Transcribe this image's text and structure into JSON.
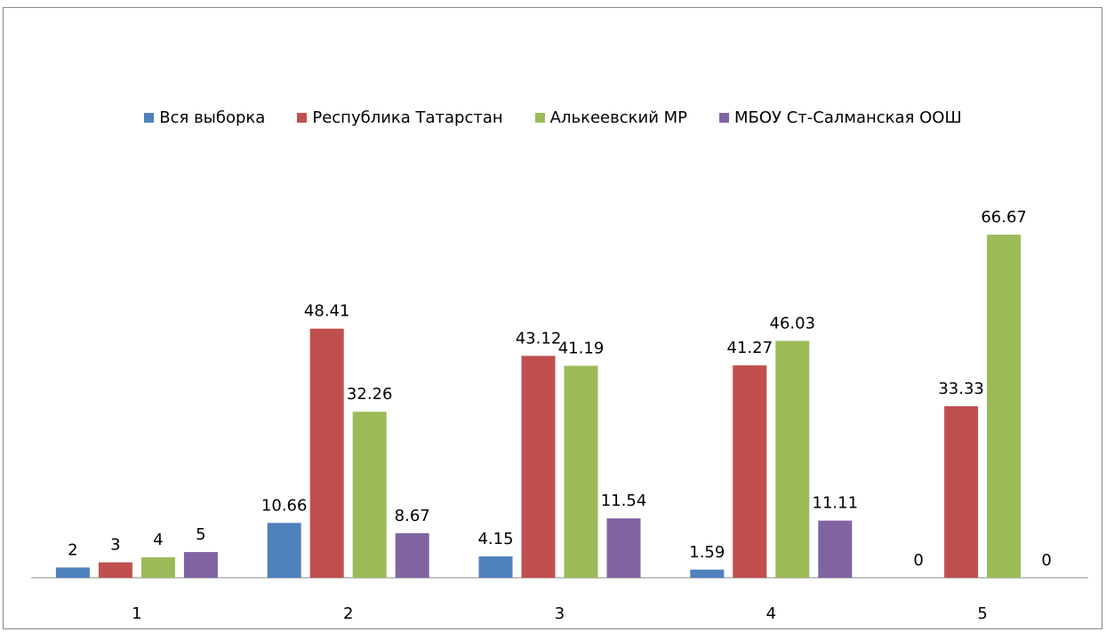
{
  "chart_data": {
    "type": "bar",
    "categories": [
      "1",
      "2",
      "3",
      "4",
      "5"
    ],
    "series": [
      {
        "name": "Вся выборка",
        "color": "#4f81bd",
        "values": [
          2,
          10.66,
          4.15,
          1.59,
          0
        ]
      },
      {
        "name": "Республика Татарстан",
        "color": "#c0504d",
        "values": [
          3,
          48.41,
          43.12,
          41.27,
          33.33
        ]
      },
      {
        "name": "Алькеевский МР",
        "color": "#9bbb59",
        "values": [
          4,
          32.26,
          41.19,
          46.03,
          66.67
        ]
      },
      {
        "name": "МБОУ Ст-Салманская ООШ",
        "color": "#8064a2",
        "values": [
          5,
          8.67,
          11.54,
          11.11,
          0
        ]
      }
    ]
  }
}
